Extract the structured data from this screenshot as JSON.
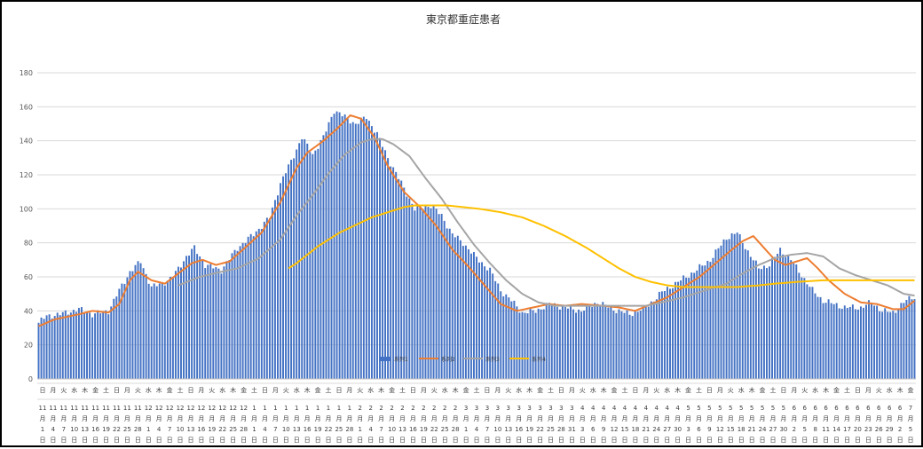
{
  "chart_data": {
    "type": "bar",
    "title": "東京都重症患者",
    "ylim": [
      0,
      180
    ],
    "yticks": [
      0,
      20,
      40,
      60,
      80,
      100,
      120,
      140,
      160,
      180
    ],
    "grid": true,
    "legend_position": "bottom",
    "colors": {
      "bars": "#4472c4",
      "series2": "#ed7d31",
      "series3": "#a5a5a5",
      "series4": "#ffc000"
    },
    "series": [
      {
        "name": "系列1",
        "type": "bar",
        "anchors": [
          [
            0,
            33
          ],
          [
            3,
            37
          ],
          [
            8,
            38
          ],
          [
            15,
            41
          ],
          [
            20,
            38
          ],
          [
            26,
            40
          ],
          [
            30,
            52
          ],
          [
            34,
            63
          ],
          [
            38,
            69
          ],
          [
            42,
            54
          ],
          [
            46,
            56
          ],
          [
            50,
            60
          ],
          [
            55,
            72
          ],
          [
            58,
            77
          ],
          [
            62,
            67
          ],
          [
            68,
            64
          ],
          [
            74,
            77
          ],
          [
            80,
            85
          ],
          [
            86,
            95
          ],
          [
            90,
            115
          ],
          [
            94,
            128
          ],
          [
            98,
            142
          ],
          [
            102,
            132
          ],
          [
            106,
            142
          ],
          [
            110,
            158
          ],
          [
            114,
            154
          ],
          [
            118,
            150
          ],
          [
            122,
            154
          ],
          [
            126,
            144
          ],
          [
            130,
            130
          ],
          [
            136,
            112
          ],
          [
            140,
            100
          ],
          [
            146,
            102
          ],
          [
            150,
            96
          ],
          [
            154,
            85
          ],
          [
            158,
            80
          ],
          [
            163,
            71
          ],
          [
            168,
            64
          ],
          [
            172,
            52
          ],
          [
            176,
            46
          ],
          [
            180,
            39
          ],
          [
            185,
            40
          ],
          [
            190,
            44
          ],
          [
            196,
            42
          ],
          [
            202,
            40
          ],
          [
            208,
            45
          ],
          [
            214,
            41
          ],
          [
            220,
            38
          ],
          [
            226,
            42
          ],
          [
            232,
            51
          ],
          [
            238,
            57
          ],
          [
            244,
            63
          ],
          [
            250,
            70
          ],
          [
            256,
            83
          ],
          [
            260,
            86
          ],
          [
            264,
            75
          ],
          [
            268,
            65
          ],
          [
            272,
            67
          ],
          [
            276,
            76
          ],
          [
            280,
            70
          ],
          [
            284,
            61
          ],
          [
            288,
            52
          ],
          [
            292,
            46
          ],
          [
            296,
            44
          ],
          [
            300,
            42
          ],
          [
            306,
            42
          ],
          [
            310,
            45
          ],
          [
            314,
            40
          ],
          [
            318,
            39
          ],
          [
            322,
            45
          ],
          [
            325,
            48
          ]
        ]
      },
      {
        "name": "系列2",
        "type": "line",
        "anchors": [
          [
            0,
            31
          ],
          [
            6,
            35
          ],
          [
            15,
            38
          ],
          [
            20,
            40
          ],
          [
            26,
            39
          ],
          [
            30,
            44
          ],
          [
            34,
            58
          ],
          [
            37,
            63
          ],
          [
            42,
            58
          ],
          [
            47,
            56
          ],
          [
            52,
            62
          ],
          [
            57,
            68
          ],
          [
            61,
            70
          ],
          [
            66,
            67
          ],
          [
            71,
            69
          ],
          [
            76,
            76
          ],
          [
            83,
            86
          ],
          [
            90,
            104
          ],
          [
            96,
            124
          ],
          [
            100,
            133
          ],
          [
            106,
            140
          ],
          [
            111,
            147
          ],
          [
            116,
            155
          ],
          [
            120,
            153
          ],
          [
            125,
            142
          ],
          [
            130,
            125
          ],
          [
            136,
            110
          ],
          [
            142,
            101
          ],
          [
            148,
            90
          ],
          [
            154,
            76
          ],
          [
            160,
            66
          ],
          [
            166,
            55
          ],
          [
            172,
            44
          ],
          [
            178,
            40
          ],
          [
            184,
            42
          ],
          [
            190,
            44
          ],
          [
            196,
            43
          ],
          [
            202,
            44
          ],
          [
            210,
            43
          ],
          [
            216,
            42
          ],
          [
            222,
            40
          ],
          [
            228,
            44
          ],
          [
            234,
            48
          ],
          [
            240,
            54
          ],
          [
            246,
            60
          ],
          [
            252,
            68
          ],
          [
            258,
            76
          ],
          [
            262,
            81
          ],
          [
            266,
            84
          ],
          [
            270,
            77
          ],
          [
            274,
            70
          ],
          [
            278,
            67
          ],
          [
            282,
            69
          ],
          [
            286,
            71
          ],
          [
            290,
            65
          ],
          [
            294,
            58
          ],
          [
            300,
            50
          ],
          [
            306,
            45
          ],
          [
            312,
            44
          ],
          [
            318,
            41
          ],
          [
            322,
            41
          ],
          [
            326,
            46
          ]
        ]
      },
      {
        "name": "系列3",
        "type": "line",
        "anchors": [
          [
            52,
            55
          ],
          [
            60,
            60
          ],
          [
            68,
            63
          ],
          [
            74,
            65
          ],
          [
            82,
            71
          ],
          [
            90,
            82
          ],
          [
            96,
            96
          ],
          [
            102,
            108
          ],
          [
            108,
            121
          ],
          [
            114,
            132
          ],
          [
            120,
            139
          ],
          [
            124,
            141
          ],
          [
            128,
            141
          ],
          [
            132,
            138
          ],
          [
            138,
            131
          ],
          [
            144,
            118
          ],
          [
            150,
            106
          ],
          [
            156,
            92
          ],
          [
            162,
            79
          ],
          [
            168,
            68
          ],
          [
            174,
            58
          ],
          [
            180,
            50
          ],
          [
            186,
            45
          ],
          [
            192,
            43
          ],
          [
            200,
            43
          ],
          [
            210,
            43
          ],
          [
            220,
            43
          ],
          [
            226,
            43
          ],
          [
            232,
            45
          ],
          [
            240,
            48
          ],
          [
            248,
            52
          ],
          [
            256,
            56
          ],
          [
            262,
            62
          ],
          [
            268,
            67
          ],
          [
            274,
            71
          ],
          [
            280,
            73
          ],
          [
            286,
            74
          ],
          [
            292,
            72
          ],
          [
            298,
            65
          ],
          [
            304,
            61
          ],
          [
            310,
            58
          ],
          [
            316,
            55
          ],
          [
            322,
            50
          ],
          [
            326,
            49
          ]
        ]
      },
      {
        "name": "系列4",
        "type": "line",
        "anchors": [
          [
            93,
            65
          ],
          [
            96,
            68
          ],
          [
            100,
            73
          ],
          [
            104,
            78
          ],
          [
            108,
            82
          ],
          [
            112,
            86
          ],
          [
            116,
            89
          ],
          [
            120,
            92
          ],
          [
            124,
            95
          ],
          [
            128,
            97
          ],
          [
            132,
            99
          ],
          [
            136,
            101
          ],
          [
            140,
            102
          ],
          [
            144,
            102
          ],
          [
            152,
            102
          ],
          [
            158,
            101
          ],
          [
            164,
            100
          ],
          [
            172,
            98
          ],
          [
            180,
            95
          ],
          [
            188,
            90
          ],
          [
            196,
            84
          ],
          [
            204,
            77
          ],
          [
            210,
            71
          ],
          [
            216,
            65
          ],
          [
            222,
            60
          ],
          [
            228,
            57
          ],
          [
            234,
            55
          ],
          [
            240,
            54
          ],
          [
            250,
            54
          ],
          [
            260,
            54
          ],
          [
            268,
            55
          ],
          [
            274,
            56
          ],
          [
            282,
            57
          ],
          [
            292,
            58
          ],
          [
            302,
            58
          ],
          [
            312,
            58
          ],
          [
            320,
            58
          ],
          [
            326,
            58
          ]
        ]
      }
    ],
    "x_rows": {
      "weekday": [
        "日",
        "月",
        "火",
        "水",
        "木",
        "金",
        "土",
        "日",
        "月",
        "火",
        "水",
        "木",
        "金",
        "土",
        "日",
        "月",
        "火",
        "水",
        "木",
        "金",
        "土",
        "日",
        "月",
        "火",
        "水",
        "木",
        "金",
        "土",
        "日",
        "月",
        "火",
        "水",
        "木",
        "金",
        "土",
        "日",
        "月",
        "火",
        "水",
        "木",
        "金",
        "土",
        "日",
        "月",
        "火",
        "水",
        "木",
        "金",
        "土",
        "日",
        "月",
        "火",
        "水",
        "木",
        "金",
        "土",
        "日",
        "月",
        "火",
        "水",
        "木",
        "金",
        "土",
        "日",
        "月",
        "火",
        "水",
        "木",
        "金",
        "土",
        "日",
        "月",
        "火",
        "水",
        "木",
        "金",
        "土",
        "日",
        "月",
        "火",
        "水",
        "木",
        "金"
      ],
      "month": [
        "11",
        "11",
        "11",
        "11",
        "11",
        "11",
        "11",
        "11",
        "11",
        "11",
        "12",
        "12",
        "12",
        "12",
        "12",
        "12",
        "12",
        "12",
        "12",
        "12",
        "1",
        "1",
        "1",
        "1",
        "1",
        "1",
        "1",
        "1",
        "1",
        "1",
        "2",
        "2",
        "2",
        "2",
        "2",
        "2",
        "2",
        "2",
        "2",
        "2",
        "3",
        "3",
        "3",
        "3",
        "3",
        "3",
        "3",
        "3",
        "3",
        "3",
        "3",
        "4",
        "4",
        "4",
        "4",
        "4",
        "4",
        "4",
        "4",
        "4",
        "4",
        "5",
        "5",
        "5",
        "5",
        "5",
        "5",
        "5",
        "5",
        "5",
        "5",
        "6",
        "6",
        "6",
        "6",
        "6",
        "6",
        "6",
        "6",
        "6",
        "6",
        "6",
        "7",
        "7"
      ],
      "day": [
        "1",
        "4",
        "7",
        "10",
        "13",
        "16",
        "19",
        "22",
        "25",
        "28",
        "1",
        "4",
        "7",
        "10",
        "13",
        "16",
        "19",
        "22",
        "25",
        "28",
        "1",
        "4",
        "7",
        "10",
        "13",
        "16",
        "19",
        "22",
        "25",
        "28",
        "1",
        "4",
        "7",
        "10",
        "13",
        "16",
        "19",
        "22",
        "25",
        "28",
        "1",
        "4",
        "7",
        "10",
        "13",
        "16",
        "19",
        "22",
        "25",
        "28",
        "31",
        "3",
        "6",
        "9",
        "12",
        "15",
        "18",
        "21",
        "24",
        "27",
        "30",
        "3",
        "6",
        "9",
        "12",
        "15",
        "18",
        "21",
        "24",
        "27",
        "30",
        "2",
        "5",
        "8",
        "11",
        "14",
        "17",
        "20",
        "23",
        "26",
        "29",
        "2",
        "5"
      ]
    }
  }
}
